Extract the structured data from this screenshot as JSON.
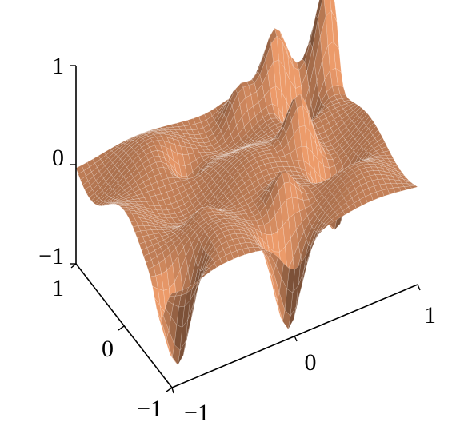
{
  "chart_data": {
    "type": "surface",
    "title": "",
    "xlabel": "",
    "ylabel": "",
    "zlabel": "",
    "xlim": [
      -1,
      1
    ],
    "ylim": [
      -1,
      1
    ],
    "zlim": [
      -1,
      1
    ],
    "x_ticks": [
      {
        "value": -1,
        "label": "−1"
      },
      {
        "value": 0,
        "label": "0"
      },
      {
        "value": 1,
        "label": "1"
      }
    ],
    "y_ticks": [
      {
        "value": -1,
        "label": "−1"
      },
      {
        "value": 0,
        "label": "0"
      },
      {
        "value": 1,
        "label": "1"
      }
    ],
    "z_ticks": [
      {
        "value": -1,
        "label": "−1"
      },
      {
        "value": 0,
        "label": "0"
      },
      {
        "value": 1,
        "label": "1"
      }
    ],
    "grid": false,
    "surface_color": "#c8835a",
    "mesh_color": "#ffffff",
    "peaks": [
      {
        "x": 0.95,
        "y": 0.75,
        "z": 1.0
      },
      {
        "x": 0.55,
        "y": 0.8,
        "z": 0.6
      },
      {
        "x": 0.25,
        "y": 0.8,
        "z": 0.35
      },
      {
        "x": 0.45,
        "y": 0.05,
        "z": 0.65
      },
      {
        "x": 0.1,
        "y": -0.5,
        "z": 0.4
      },
      {
        "x": -0.5,
        "y": -0.35,
        "z": 0.15
      },
      {
        "x": -0.3,
        "y": 0.5,
        "z": -0.3
      }
    ],
    "troughs": [
      {
        "x": -0.85,
        "y": -0.75,
        "z": -0.95
      },
      {
        "x": 0.0,
        "y": -0.85,
        "z": -0.9
      },
      {
        "x": 0.6,
        "y": -0.3,
        "z": -0.65
      },
      {
        "x": 0.65,
        "y": 0.6,
        "z": -0.7
      }
    ]
  }
}
